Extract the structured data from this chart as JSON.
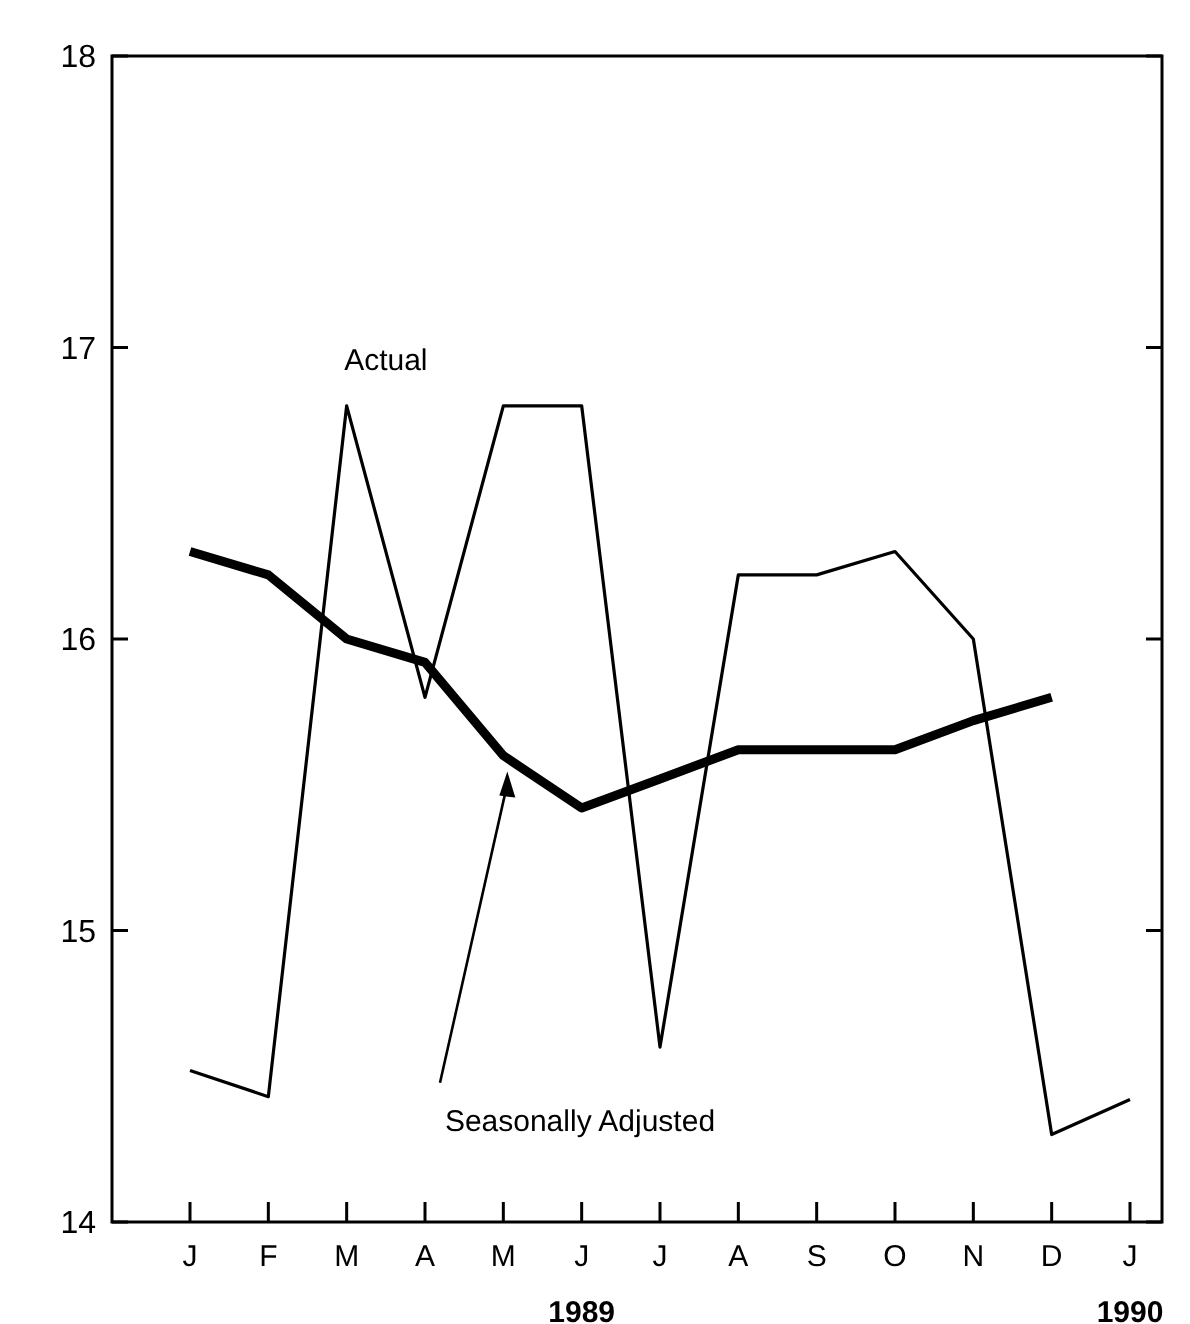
{
  "chart_data": {
    "type": "line",
    "categories": [
      "J",
      "F",
      "M",
      "A",
      "M",
      "J",
      "J",
      "A",
      "S",
      "O",
      "N",
      "D",
      "J"
    ],
    "series": [
      {
        "name": "Actual",
        "color": "#000000",
        "values": [
          14.52,
          14.43,
          16.8,
          15.8,
          16.8,
          16.8,
          14.6,
          16.22,
          16.22,
          16.3,
          16.0,
          14.3,
          14.42
        ]
      },
      {
        "name": "Seasonally Adjusted",
        "color": "#000000",
        "values": [
          16.3,
          16.22,
          16.0,
          15.92,
          15.6,
          15.42,
          15.52,
          15.62,
          15.62,
          15.62,
          15.72,
          15.8,
          null
        ]
      }
    ],
    "ylim": [
      14,
      18
    ],
    "yticks": [
      14,
      15,
      16,
      17,
      18
    ],
    "grid": false,
    "annotations": [
      "1989",
      "1990"
    ]
  }
}
